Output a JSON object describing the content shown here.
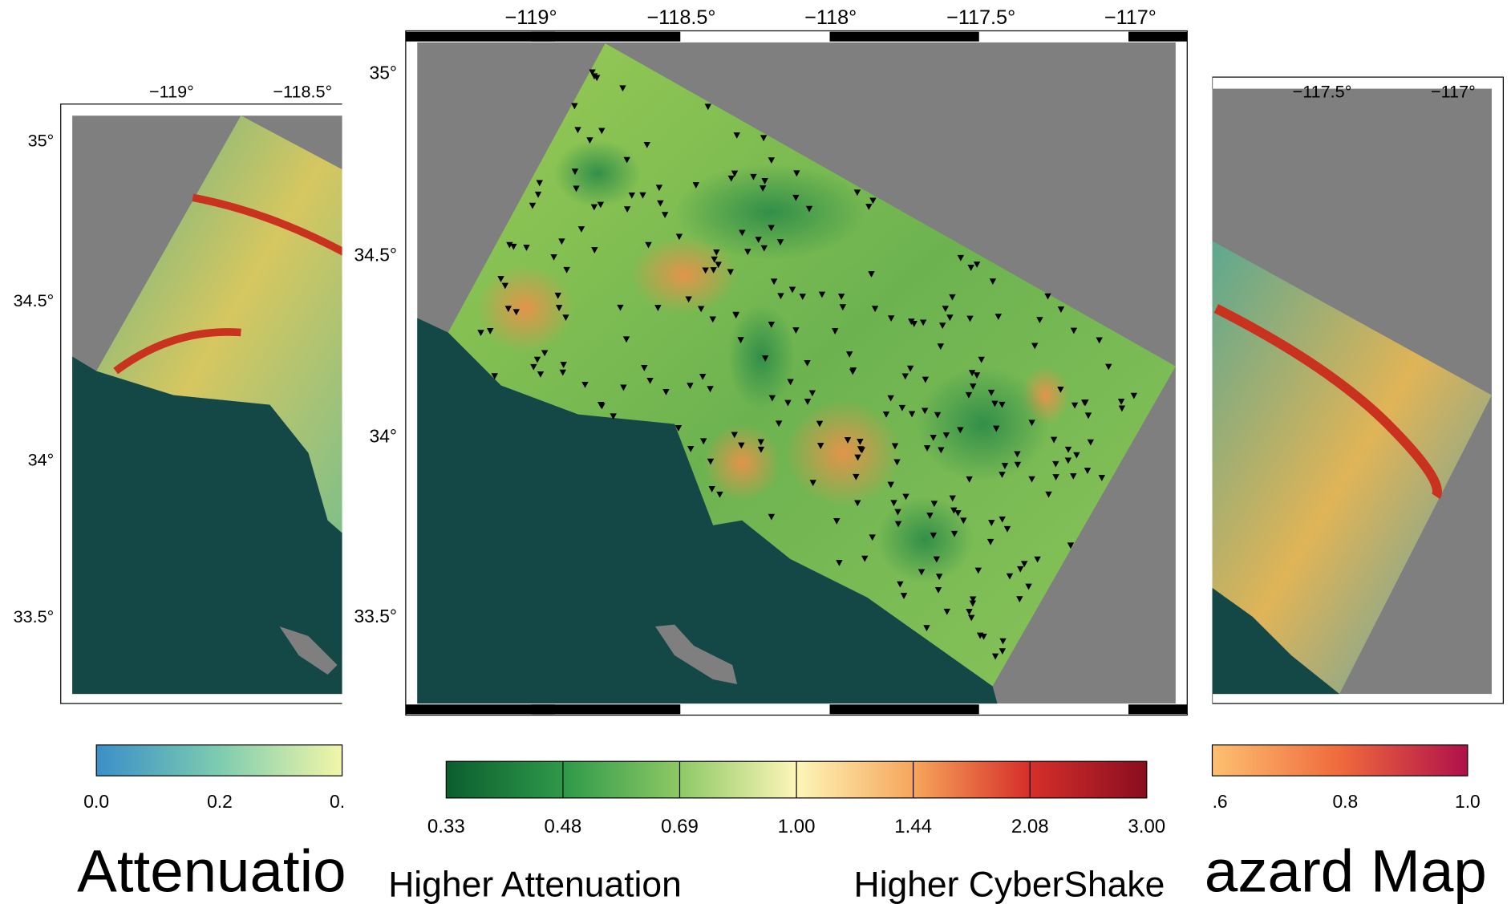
{
  "left_map": {
    "xticks": [
      "−119°",
      "−118.5°"
    ],
    "yticks": [
      "35°",
      "34.5°",
      "34°",
      "33.5°"
    ],
    "colorbar_ticks": [
      "0.0",
      "0.2",
      "0."
    ],
    "caption": "Attenuatio"
  },
  "center_map": {
    "xticks": [
      "−119°",
      "−118.5°",
      "−118°",
      "−117.5°",
      "−117°"
    ],
    "yticks": [
      "35°",
      "34.5°",
      "34°",
      "33.5°"
    ],
    "colorbar_ticks": [
      "0.33",
      "0.48",
      "0.69",
      "1.00",
      "1.44",
      "2.08",
      "3.00"
    ],
    "caption_left": "Higher Attenuation",
    "caption_right": "Higher CyberShake"
  },
  "right_map": {
    "xticks": [
      "−117.5°",
      "−117°"
    ],
    "colorbar_ticks": [
      ".6",
      "0.8",
      "1.0"
    ],
    "caption": "azard Map"
  }
}
